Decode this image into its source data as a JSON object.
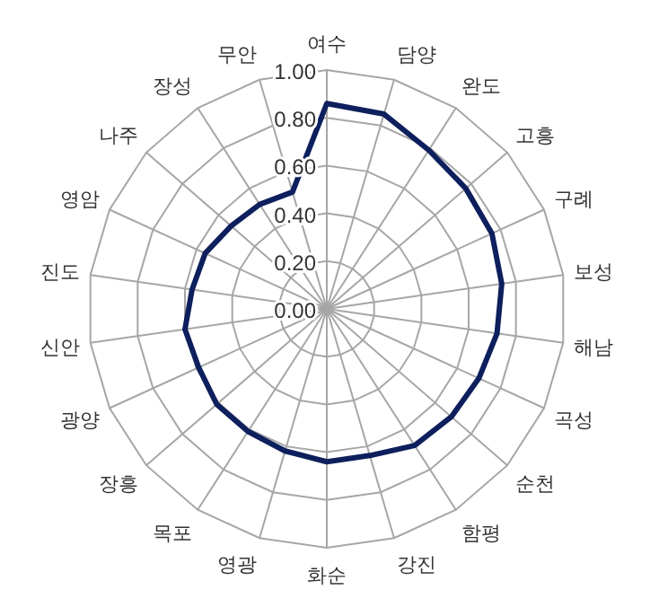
{
  "chart_data": {
    "type": "radar",
    "categories": [
      "여수",
      "담양",
      "완도",
      "고흥",
      "구례",
      "보성",
      "해남",
      "곡성",
      "순천",
      "함평",
      "강진",
      "화순",
      "영광",
      "목포",
      "장흥",
      "광양",
      "신안",
      "진도",
      "영암",
      "나주",
      "장성",
      "무안"
    ],
    "series": [
      {
        "color": "#0d1f5c",
        "values": [
          0.86,
          0.85,
          0.79,
          0.77,
          0.76,
          0.74,
          0.72,
          0.7,
          0.69,
          0.68,
          0.64,
          0.64,
          0.62,
          0.61,
          0.61,
          0.59,
          0.6,
          0.57,
          0.56,
          0.53,
          0.52,
          0.51
        ]
      }
    ],
    "ylim": [
      0,
      1
    ],
    "yticks": [
      {
        "value": 0,
        "label": "0.00"
      },
      {
        "value": 0.2,
        "label": "0.20"
      },
      {
        "value": 0.4,
        "label": "0.40"
      },
      {
        "value": 0.6,
        "label": "0.60"
      },
      {
        "value": 0.8,
        "label": "0.80"
      },
      {
        "value": 1,
        "label": "1.00"
      }
    ],
    "grid": true,
    "marker": "none",
    "line_style": "solid"
  }
}
